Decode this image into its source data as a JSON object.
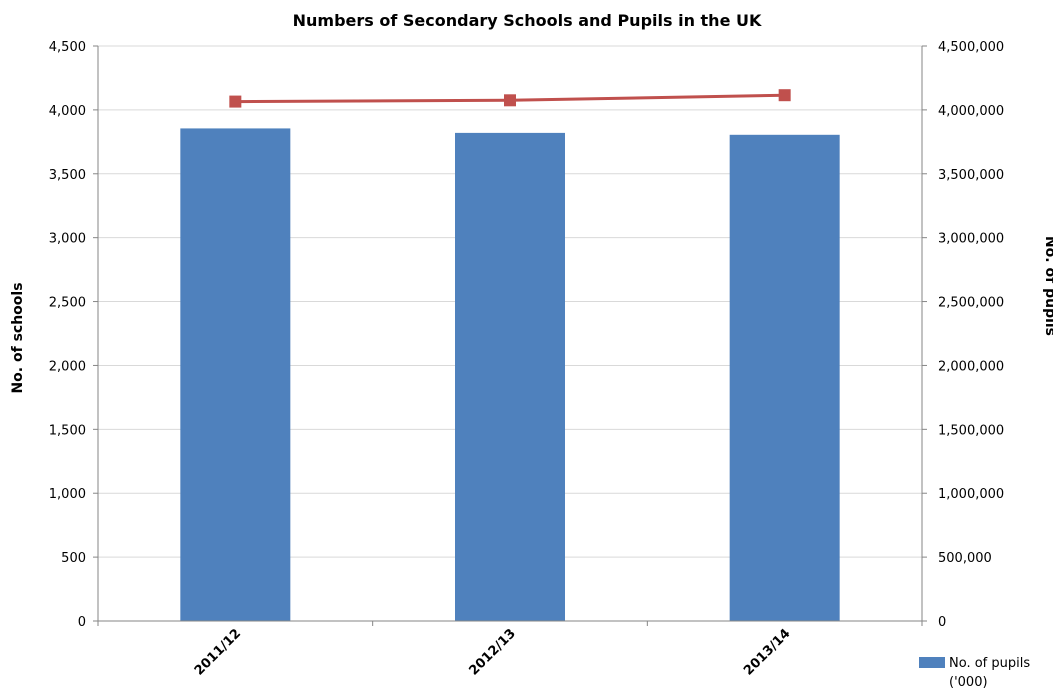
{
  "chart_data": {
    "type": "bar",
    "title": "Numbers of Secondary Schools and Pupils in the UK",
    "categories": [
      "2011/12",
      "2012/13",
      "2013/14"
    ],
    "series": [
      {
        "name": "No. of pupils ('000)",
        "type": "bar",
        "axis": "left",
        "color": "#4F81BD",
        "values": [
          3855,
          3820,
          3805
        ]
      },
      {
        "type": "line",
        "axis": "right",
        "color": "#C0504D",
        "marker": "square",
        "values": [
          4065000,
          4075000,
          4115000
        ]
      }
    ],
    "ylabel": "No. of schools",
    "y2label": "No. of pupils",
    "ylim": [
      0,
      4500
    ],
    "y2lim": [
      0,
      4500000
    ],
    "yticks": [
      "0",
      "500",
      "1,000",
      "1,500",
      "2,000",
      "2,500",
      "3,000",
      "3,500",
      "4,000",
      "4,500"
    ],
    "y2ticks": [
      "0",
      "500,000",
      "1,000,000",
      "1,500,000",
      "2,000,000",
      "2,500,000",
      "3,000,000",
      "3,500,000",
      "4,000,000",
      "4,500,000"
    ],
    "grid": true,
    "legend": {
      "position": "bottom-right",
      "entries": [
        "No. of pupils",
        "('000)"
      ]
    },
    "colors": {
      "gridline": "#D9D9D9",
      "axis": "#868686"
    }
  }
}
